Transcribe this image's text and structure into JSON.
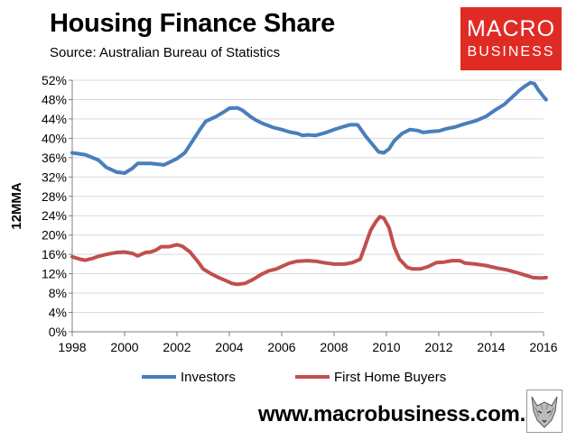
{
  "header": {
    "title": "Housing Finance Share",
    "source": "Source: Australian Bureau of Statistics"
  },
  "logo": {
    "line1": "MACRO",
    "line2": "BUSINESS",
    "bg_color": "#e02b25"
  },
  "footer": {
    "url": "www.macrobusiness.com.au",
    "wolf_icon": "wolf-icon"
  },
  "chart_data": {
    "type": "line",
    "title": "Housing Finance Share",
    "ylabel": "12MMA",
    "xlabel": "",
    "xlim": [
      1998,
      2016
    ],
    "ylim": [
      0,
      52
    ],
    "x_ticks": [
      "1998",
      "2000",
      "2002",
      "2004",
      "2006",
      "2008",
      "2010",
      "2012",
      "2014",
      "2016"
    ],
    "y_ticks": [
      "0%",
      "4%",
      "8%",
      "12%",
      "16%",
      "20%",
      "24%",
      "28%",
      "32%",
      "36%",
      "40%",
      "44%",
      "48%",
      "52%"
    ],
    "grid": "horizontal",
    "legend": "bottom",
    "series": [
      {
        "name": "Investors",
        "color": "#4a7ebb",
        "points": [
          [
            1998.0,
            37.0
          ],
          [
            1998.5,
            36.6
          ],
          [
            1999.0,
            35.5
          ],
          [
            1999.3,
            34.0
          ],
          [
            1999.7,
            33.0
          ],
          [
            2000.0,
            32.8
          ],
          [
            2000.3,
            33.8
          ],
          [
            2000.5,
            34.8
          ],
          [
            2000.8,
            34.8
          ],
          [
            2001.0,
            34.8
          ],
          [
            2001.5,
            34.5
          ],
          [
            2001.7,
            35.0
          ],
          [
            2002.0,
            35.8
          ],
          [
            2002.3,
            37.0
          ],
          [
            2002.6,
            39.5
          ],
          [
            2002.9,
            42.0
          ],
          [
            2003.1,
            43.5
          ],
          [
            2003.5,
            44.5
          ],
          [
            2003.8,
            45.5
          ],
          [
            2004.0,
            46.2
          ],
          [
            2004.3,
            46.3
          ],
          [
            2004.5,
            45.8
          ],
          [
            2004.8,
            44.5
          ],
          [
            2005.0,
            43.8
          ],
          [
            2005.3,
            43.0
          ],
          [
            2005.7,
            42.2
          ],
          [
            2006.0,
            41.8
          ],
          [
            2006.3,
            41.3
          ],
          [
            2006.6,
            41.0
          ],
          [
            2006.8,
            40.6
          ],
          [
            2007.0,
            40.7
          ],
          [
            2007.3,
            40.6
          ],
          [
            2007.7,
            41.2
          ],
          [
            2008.0,
            41.8
          ],
          [
            2008.3,
            42.3
          ],
          [
            2008.6,
            42.8
          ],
          [
            2008.9,
            42.8
          ],
          [
            2009.2,
            40.5
          ],
          [
            2009.5,
            38.5
          ],
          [
            2009.7,
            37.2
          ],
          [
            2009.9,
            37.0
          ],
          [
            2010.1,
            37.8
          ],
          [
            2010.3,
            39.5
          ],
          [
            2010.6,
            41.0
          ],
          [
            2010.9,
            41.8
          ],
          [
            2011.2,
            41.6
          ],
          [
            2011.4,
            41.2
          ],
          [
            2011.7,
            41.4
          ],
          [
            2012.0,
            41.5
          ],
          [
            2012.3,
            42.0
          ],
          [
            2012.6,
            42.3
          ],
          [
            2013.0,
            43.0
          ],
          [
            2013.4,
            43.6
          ],
          [
            2013.8,
            44.5
          ],
          [
            2014.2,
            46.0
          ],
          [
            2014.5,
            47.0
          ],
          [
            2014.8,
            48.5
          ],
          [
            2015.1,
            50.0
          ],
          [
            2015.3,
            50.8
          ],
          [
            2015.5,
            51.5
          ],
          [
            2015.65,
            51.3
          ],
          [
            2015.8,
            50.0
          ],
          [
            2016.0,
            48.6
          ],
          [
            2016.1,
            48.0
          ]
        ]
      },
      {
        "name": "First Home Buyers",
        "color": "#c0504d",
        "points": [
          [
            1998.0,
            15.5
          ],
          [
            1998.3,
            15.0
          ],
          [
            1998.5,
            14.8
          ],
          [
            1998.8,
            15.2
          ],
          [
            1999.0,
            15.6
          ],
          [
            1999.3,
            16.0
          ],
          [
            1999.7,
            16.4
          ],
          [
            2000.0,
            16.5
          ],
          [
            2000.3,
            16.2
          ],
          [
            2000.5,
            15.7
          ],
          [
            2000.8,
            16.4
          ],
          [
            2001.0,
            16.5
          ],
          [
            2001.2,
            16.9
          ],
          [
            2001.4,
            17.6
          ],
          [
            2001.7,
            17.6
          ],
          [
            2002.0,
            18.0
          ],
          [
            2002.2,
            17.7
          ],
          [
            2002.5,
            16.5
          ],
          [
            2002.8,
            14.5
          ],
          [
            2003.0,
            13.0
          ],
          [
            2003.3,
            12.0
          ],
          [
            2003.6,
            11.2
          ],
          [
            2003.9,
            10.5
          ],
          [
            2004.1,
            10.0
          ],
          [
            2004.3,
            9.8
          ],
          [
            2004.6,
            10.0
          ],
          [
            2004.9,
            10.8
          ],
          [
            2005.2,
            11.8
          ],
          [
            2005.5,
            12.6
          ],
          [
            2005.8,
            13.0
          ],
          [
            2006.0,
            13.5
          ],
          [
            2006.3,
            14.2
          ],
          [
            2006.6,
            14.6
          ],
          [
            2007.0,
            14.7
          ],
          [
            2007.3,
            14.6
          ],
          [
            2007.6,
            14.3
          ],
          [
            2008.0,
            14.0
          ],
          [
            2008.4,
            14.0
          ],
          [
            2008.7,
            14.3
          ],
          [
            2009.0,
            15.0
          ],
          [
            2009.2,
            18.0
          ],
          [
            2009.4,
            21.0
          ],
          [
            2009.6,
            22.8
          ],
          [
            2009.75,
            23.8
          ],
          [
            2009.9,
            23.5
          ],
          [
            2010.1,
            21.5
          ],
          [
            2010.3,
            17.5
          ],
          [
            2010.5,
            15.0
          ],
          [
            2010.8,
            13.3
          ],
          [
            2011.0,
            13.0
          ],
          [
            2011.3,
            13.0
          ],
          [
            2011.6,
            13.5
          ],
          [
            2011.9,
            14.3
          ],
          [
            2012.2,
            14.4
          ],
          [
            2012.5,
            14.7
          ],
          [
            2012.8,
            14.7
          ],
          [
            2013.0,
            14.2
          ],
          [
            2013.4,
            14.0
          ],
          [
            2013.8,
            13.7
          ],
          [
            2014.2,
            13.2
          ],
          [
            2014.6,
            12.8
          ],
          [
            2015.0,
            12.2
          ],
          [
            2015.3,
            11.7
          ],
          [
            2015.6,
            11.2
          ],
          [
            2015.9,
            11.1
          ],
          [
            2016.1,
            11.2
          ]
        ]
      }
    ]
  }
}
